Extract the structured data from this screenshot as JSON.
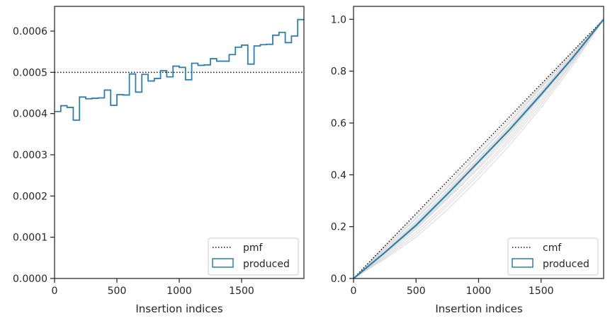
{
  "colors": {
    "produced": "#2d7fb0",
    "reference": "#111111",
    "traces": "#d8d8d8",
    "axes": "#262626"
  },
  "chart_data": [
    {
      "type": "line",
      "subtype": "step-histogram",
      "xlabel": "Insertion indices",
      "ylabel": "",
      "xlim": [
        0,
        2000
      ],
      "ylim": [
        0,
        0.00066
      ],
      "xticks": [
        0,
        500,
        1000,
        1500
      ],
      "yticks": [
        0,
        0.0001,
        0.0002,
        0.0003,
        0.0004,
        0.0005,
        0.0006
      ],
      "ytick_labels": [
        "0.0000",
        "0.0001",
        "0.0002",
        "0.0003",
        "0.0004",
        "0.0005",
        "0.0006"
      ],
      "grid": false,
      "legend_position": "lower-right",
      "reference": {
        "name": "pmf",
        "value": 0.0005,
        "style": "dotted"
      },
      "series": [
        {
          "name": "produced",
          "bin_width": 50,
          "bin_edges_start": 0,
          "values": [
            0.000405,
            0.000419,
            0.000415,
            0.000384,
            0.00044,
            0.000436,
            0.000437,
            0.000438,
            0.000457,
            0.00042,
            0.000446,
            0.000445,
            0.000496,
            0.000452,
            0.000495,
            0.000479,
            0.000485,
            0.000504,
            0.000489,
            0.000515,
            0.000512,
            0.000482,
            0.000522,
            0.000517,
            0.000518,
            0.000533,
            0.000527,
            0.000527,
            0.000543,
            0.000561,
            0.000566,
            0.00052,
            0.000564,
            0.000567,
            0.000568,
            0.00059,
            0.000597,
            0.000572,
            0.000588,
            0.000628
          ]
        }
      ]
    },
    {
      "type": "line",
      "xlabel": "Insertion indices",
      "ylabel": "",
      "xlim": [
        0,
        2000
      ],
      "ylim": [
        0,
        1.05
      ],
      "xticks": [
        0,
        500,
        1000,
        1500
      ],
      "yticks": [
        0,
        0.2,
        0.4,
        0.6,
        0.8,
        1.0
      ],
      "ytick_labels": [
        "0.0",
        "0.2",
        "0.4",
        "0.6",
        "0.8",
        "1.0"
      ],
      "grid": false,
      "legend_position": "lower-right",
      "reference": {
        "name": "cmf",
        "points": [
          [
            0,
            0
          ],
          [
            2000,
            1
          ]
        ],
        "style": "dotted"
      },
      "series": [
        {
          "name": "produced",
          "x": [
            0,
            250,
            500,
            750,
            1000,
            1250,
            1500,
            1750,
            2000
          ],
          "y": [
            0,
            0.1,
            0.205,
            0.325,
            0.45,
            0.575,
            0.71,
            0.85,
            1.0
          ]
        }
      ],
      "background_traces": [
        {
          "x": [
            0,
            250,
            500,
            750,
            1000,
            1250,
            1500,
            1750,
            2000
          ],
          "y": [
            0,
            0.08,
            0.17,
            0.28,
            0.4,
            0.53,
            0.67,
            0.83,
            1.0
          ]
        },
        {
          "x": [
            0,
            250,
            500,
            750,
            1000,
            1250,
            1500,
            1750,
            2000
          ],
          "y": [
            0,
            0.085,
            0.18,
            0.29,
            0.41,
            0.54,
            0.68,
            0.835,
            1.0
          ]
        },
        {
          "x": [
            0,
            250,
            500,
            750,
            1000,
            1250,
            1500,
            1750,
            2000
          ],
          "y": [
            0,
            0.09,
            0.19,
            0.305,
            0.425,
            0.55,
            0.69,
            0.84,
            1.0
          ]
        },
        {
          "x": [
            0,
            250,
            500,
            750,
            1000,
            1250,
            1500,
            1750,
            2000
          ],
          "y": [
            0,
            0.095,
            0.195,
            0.31,
            0.43,
            0.56,
            0.7,
            0.845,
            1.0
          ]
        },
        {
          "x": [
            0,
            250,
            500,
            750,
            1000,
            1250,
            1500,
            1750,
            2000
          ],
          "y": [
            0,
            0.105,
            0.21,
            0.33,
            0.455,
            0.58,
            0.715,
            0.855,
            1.0
          ]
        },
        {
          "x": [
            0,
            250,
            500,
            750,
            1000,
            1250,
            1500,
            1750,
            2000
          ],
          "y": [
            0,
            0.11,
            0.22,
            0.34,
            0.465,
            0.59,
            0.725,
            0.86,
            1.0
          ]
        },
        {
          "x": [
            0,
            250,
            500,
            750,
            1000,
            1250,
            1500,
            1750,
            2000
          ],
          "y": [
            0,
            0.115,
            0.23,
            0.35,
            0.475,
            0.6,
            0.735,
            0.865,
            1.0
          ]
        },
        {
          "x": [
            0,
            250,
            500,
            750,
            1000,
            1250,
            1500,
            1750,
            2000
          ],
          "y": [
            0,
            0.12,
            0.235,
            0.355,
            0.48,
            0.605,
            0.74,
            0.87,
            1.0
          ]
        },
        {
          "x": [
            0,
            250,
            500,
            750,
            1000,
            1250,
            1500,
            1750,
            2000
          ],
          "y": [
            0,
            0.075,
            0.16,
            0.265,
            0.385,
            0.515,
            0.66,
            0.82,
            1.0
          ]
        },
        {
          "x": [
            0,
            250,
            500,
            750,
            1000,
            1250,
            1500,
            1750,
            2000
          ],
          "y": [
            0,
            0.1,
            0.2,
            0.315,
            0.44,
            0.565,
            0.705,
            0.85,
            1.0
          ]
        },
        {
          "x": [
            0,
            250,
            500,
            750,
            1000,
            1250,
            1500,
            1750,
            2000
          ],
          "y": [
            0,
            0.125,
            0.245,
            0.365,
            0.49,
            0.615,
            0.745,
            0.875,
            1.0
          ]
        },
        {
          "x": [
            0,
            250,
            500,
            750,
            1000,
            1250,
            1500,
            1750,
            2000
          ],
          "y": [
            0,
            0.105,
            0.215,
            0.335,
            0.46,
            0.585,
            0.72,
            0.858,
            1.0
          ]
        }
      ]
    }
  ]
}
